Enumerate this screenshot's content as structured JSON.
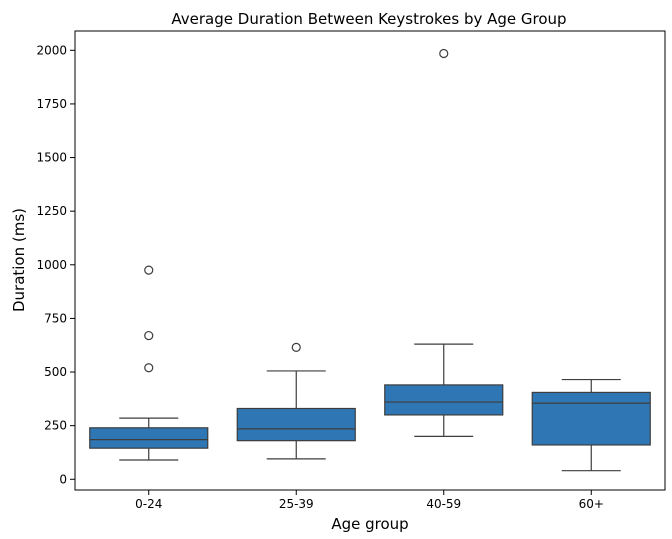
{
  "chart_data": {
    "type": "box",
    "title": "Average Duration Between Keystrokes by Age Group",
    "xlabel": "Age group",
    "ylabel": "Duration (ms)",
    "ylim": [
      -50,
      2090
    ],
    "yticks": [
      0,
      250,
      500,
      750,
      1000,
      1250,
      1500,
      1750,
      2000
    ],
    "categories": [
      "0-24",
      "25-39",
      "40-59",
      "60+"
    ],
    "box_color": "#2f77b4",
    "line_color": "#3d3d3d",
    "grid": false,
    "boxes": [
      {
        "category": "0-24",
        "whisker_low": 90,
        "q1": 145,
        "median": 185,
        "q3": 240,
        "whisker_high": 285,
        "outliers": [
          520,
          670,
          975
        ]
      },
      {
        "category": "25-39",
        "whisker_low": 95,
        "q1": 180,
        "median": 235,
        "q3": 330,
        "whisker_high": 505,
        "outliers": [
          615
        ]
      },
      {
        "category": "40-59",
        "whisker_low": 200,
        "q1": 300,
        "median": 360,
        "q3": 440,
        "whisker_high": 630,
        "outliers": [
          1985
        ]
      },
      {
        "category": "60+",
        "whisker_low": 40,
        "q1": 160,
        "median": 355,
        "q3": 405,
        "whisker_high": 465,
        "outliers": []
      }
    ]
  }
}
